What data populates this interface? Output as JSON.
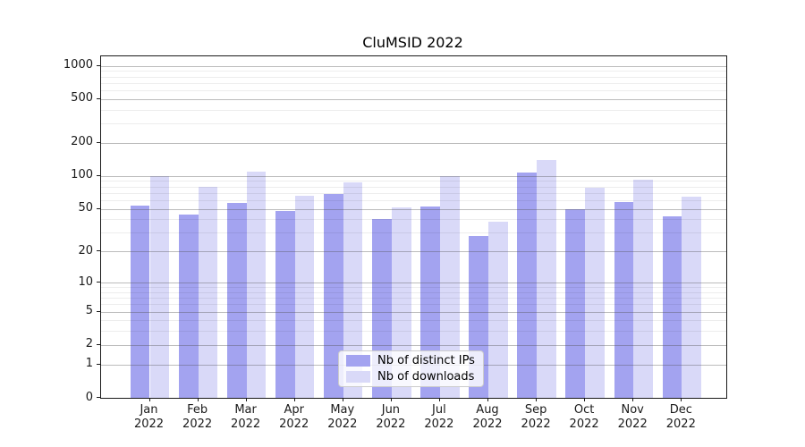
{
  "title": "CluMSID 2022",
  "chart_data": {
    "type": "bar",
    "title": "CluMSID 2022",
    "categories": [
      "Jan",
      "Feb",
      "Mar",
      "Apr",
      "May",
      "Jun",
      "Jul",
      "Aug",
      "Sep",
      "Oct",
      "Nov",
      "Dec"
    ],
    "category_year": "2022",
    "series": [
      {
        "name": "Nb of distinct IPs",
        "color": "#a3a3f0",
        "values": [
          54,
          44,
          57,
          48,
          68,
          40,
          53,
          28,
          107,
          50,
          58,
          43
        ]
      },
      {
        "name": "Nb of downloads",
        "color": "#d9d9f8",
        "values": [
          100,
          80,
          110,
          66,
          88,
          52,
          100,
          38,
          140,
          78,
          92,
          65
        ]
      }
    ],
    "yscale": "log1p",
    "y_major_ticks": [
      0,
      1,
      2,
      5,
      10,
      20,
      50,
      100,
      200,
      500,
      1000
    ],
    "y_minor_ticks": [
      3,
      4,
      6,
      7,
      8,
      9,
      30,
      40,
      60,
      70,
      80,
      90,
      300,
      400,
      600,
      700,
      800,
      900
    ],
    "ylim": [
      0,
      1215
    ],
    "xlabel": "",
    "ylabel": "",
    "grid": true,
    "legend_position": "bottom-center"
  },
  "legend": {
    "items": [
      "Nb of distinct IPs",
      "Nb of downloads"
    ]
  }
}
